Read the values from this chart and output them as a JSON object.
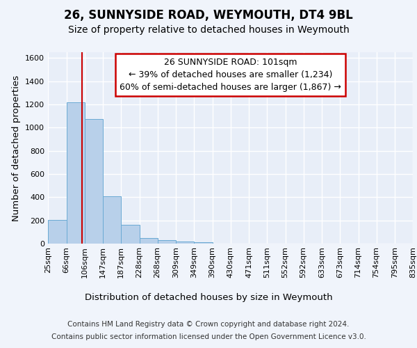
{
  "title": "26, SUNNYSIDE ROAD, WEYMOUTH, DT4 9BL",
  "subtitle": "Size of property relative to detached houses in Weymouth",
  "xlabel": "Distribution of detached houses by size in Weymouth",
  "ylabel": "Number of detached properties",
  "footer_line1": "Contains HM Land Registry data © Crown copyright and database right 2024.",
  "footer_line2": "Contains public sector information licensed under the Open Government Licence v3.0.",
  "annotation_line1": "26 SUNNYSIDE ROAD: 101sqm",
  "annotation_line2": "← 39% of detached houses are smaller (1,234)",
  "annotation_line3": "60% of semi-detached houses are larger (1,867) →",
  "bar_edges": [
    25,
    66,
    106,
    147,
    187,
    228,
    268,
    309,
    349,
    390,
    430,
    471,
    511,
    552,
    592,
    633,
    673,
    714,
    754,
    795,
    835
  ],
  "bar_heights": [
    205,
    1220,
    1075,
    410,
    160,
    50,
    28,
    18,
    15,
    0,
    0,
    0,
    0,
    0,
    0,
    0,
    0,
    0,
    0,
    0
  ],
  "bar_color": "#b8d0ea",
  "bar_edge_color": "#6aaad4",
  "vline_x": 101,
  "vline_color": "#cc0000",
  "background_color": "#f0f4fb",
  "plot_bg_color": "#e8eef8",
  "grid_color": "#ffffff",
  "ylim": [
    0,
    1650
  ],
  "yticks": [
    0,
    200,
    400,
    600,
    800,
    1000,
    1200,
    1400,
    1600
  ],
  "title_fontsize": 12,
  "subtitle_fontsize": 10,
  "axis_label_fontsize": 9.5,
  "tick_fontsize": 8,
  "annotation_fontsize": 9,
  "footer_fontsize": 7.5
}
